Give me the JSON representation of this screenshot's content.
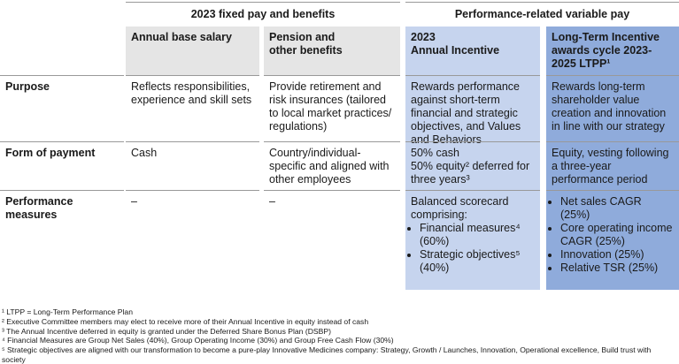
{
  "header_groups": [
    "2023 fixed pay and benefits",
    "Performance-related variable pay"
  ],
  "columns": [
    "Annual base salary",
    "Pension and\nother benefits",
    "2023\nAnnual Incentive",
    "Long-Term Incentive awards cycle 2023-2025 LTPP¹"
  ],
  "rows": [
    {
      "label": "Purpose",
      "cells": [
        "Reflects responsibilities, experience and skill sets",
        "Provide retirement and risk insurances (tailored to local market practices/ regulations)",
        "Rewards performance against short-term financial and strategic objectives, and Values and Behaviors",
        "Rewards long-term share­holder value creation and innovation in line with our strategy"
      ]
    },
    {
      "label": "Form of payment",
      "cells": [
        "Cash",
        "Country/individual-specific and aligned with other employees",
        "50% cash\n50% equity² deferred for three years³",
        "Equity, vesting following a three-year performance period"
      ]
    },
    {
      "label": "Performance measures",
      "cells": [
        "–",
        "–",
        {
          "text": "Balanced scorecard comprising:",
          "bullets": [
            "Financial measures⁴ (60%)",
            "Strategic objectives⁵ (40%)"
          ]
        },
        {
          "bullets": [
            "Net sales CAGR (25%)",
            "Core operating income CAGR (25%)",
            "Innovation (25%)",
            "Relative TSR (25%)"
          ]
        }
      ]
    }
  ],
  "footnotes": [
    "¹ LTPP = Long-Term Performance Plan",
    "² Executive Committee members may elect to receive more of their Annual Incentive in equity instead of cash",
    "³ The Annual Incentive deferred in equity is granted under the Deferred Share Bonus Plan (DSBP)",
    "⁴ Financial Measures are Group Net Sales (40%), Group Operating Income (30%) and Group Free Cash Flow (30%)",
    "⁵ Strategic objectives are aligned with our transformation to become a pure-play Innovative Medicines company: Strategy, Growth / Launches, Innovation, Operational excellence, Build trust with society"
  ]
}
